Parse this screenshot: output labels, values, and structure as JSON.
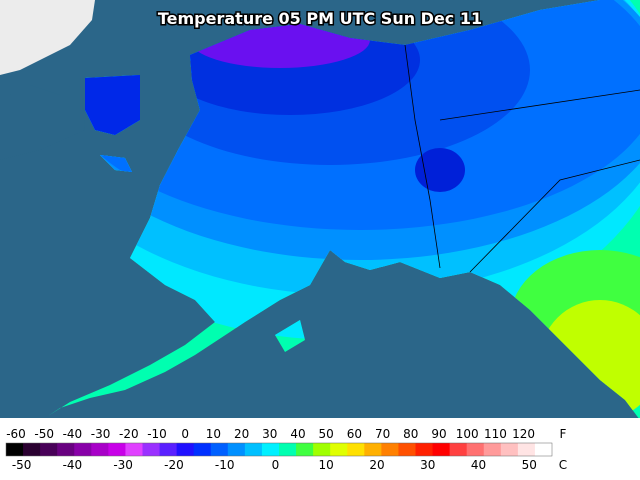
{
  "title": "Temperature 05 PM UTC Sun Dec 11",
  "legend": {
    "fahrenheit": {
      "unit": "F",
      "ticks": [
        -60,
        -50,
        -40,
        -30,
        -20,
        -10,
        0,
        10,
        20,
        30,
        40,
        50,
        60,
        70,
        80,
        90,
        100,
        110,
        120
      ]
    },
    "celsius": {
      "unit": "C",
      "ticks": [
        -50,
        -40,
        -30,
        -20,
        -10,
        0,
        10,
        20,
        30,
        40,
        50
      ]
    },
    "colors": [
      "#000000",
      "#2a0030",
      "#480058",
      "#680080",
      "#8800a8",
      "#a800c8",
      "#c800e8",
      "#e040ff",
      "#9a30ff",
      "#5a20ff",
      "#2010ff",
      "#0030ff",
      "#0060ff",
      "#0090ff",
      "#00c0ff",
      "#00f0ff",
      "#00ffb0",
      "#40ff40",
      "#a0ff00",
      "#e0ff00",
      "#ffe000",
      "#ffb000",
      "#ff8000",
      "#ff5000",
      "#ff2000",
      "#ff0000",
      "#ff4040",
      "#ff7070",
      "#ff9a9a",
      "#ffc0c0",
      "#ffe4e4",
      "#ffffff"
    ]
  }
}
